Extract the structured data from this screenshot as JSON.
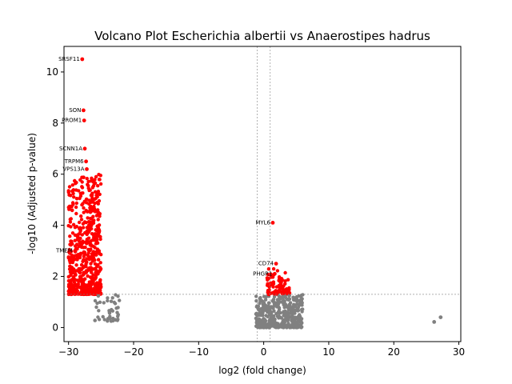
{
  "chart_data": {
    "type": "scatter",
    "title": "Volcano Plot Escherichia albertii vs Anaerostipes hadrus",
    "xlabel": "log2 (fold change)",
    "ylabel": "-log10 (Adjusted p-value)",
    "xlim": [
      -30.7,
      30.3
    ],
    "ylim": [
      -0.55,
      11.0
    ],
    "xticks": [
      -30,
      -20,
      -10,
      0,
      10,
      20,
      30
    ],
    "yticks": [
      0,
      2,
      4,
      6,
      8,
      10
    ],
    "grid": false,
    "thresholds": {
      "x": [
        -1,
        1
      ],
      "y": 1.3
    },
    "colors": {
      "significant": "#ff0000",
      "nonsignificant": "#808080",
      "threshold": "#808080"
    },
    "labeled_points": [
      {
        "label": "SRSF11",
        "x": -27.9,
        "y": 10.5
      },
      {
        "label": "SON",
        "x": -27.7,
        "y": 8.5
      },
      {
        "label": "PROM1",
        "x": -27.6,
        "y": 8.1
      },
      {
        "label": "SCNN1A",
        "x": -27.5,
        "y": 7.0
      },
      {
        "label": "TRPM6",
        "x": -27.3,
        "y": 6.5
      },
      {
        "label": "VPS13A",
        "x": -27.2,
        "y": 6.2
      },
      {
        "label": "MYL6",
        "x": 1.4,
        "y": 4.1
      },
      {
        "label": "CD74",
        "x": 1.9,
        "y": 2.5
      },
      {
        "label": "PHGR1",
        "x": 1.7,
        "y": 2.1
      },
      {
        "label": "TMEM",
        "x": -29.0,
        "y": 3.0
      }
    ],
    "clusters": [
      {
        "name": "left-significant",
        "x_range": [
          -30.0,
          -25.0
        ],
        "y_range": [
          1.3,
          6.0
        ],
        "count": 600,
        "color": "significant"
      },
      {
        "name": "left-nonsig",
        "x_range": [
          -26.0,
          -22.0
        ],
        "y_range": [
          0.25,
          1.3
        ],
        "count": 45,
        "color": "nonsignificant"
      },
      {
        "name": "center-nonsig",
        "x_range": [
          -1.2,
          6.0
        ],
        "y_range": [
          0.0,
          1.3
        ],
        "count": 420,
        "color": "nonsignificant"
      },
      {
        "name": "center-significant",
        "x_range": [
          0.5,
          4.0
        ],
        "y_range": [
          1.3,
          2.3
        ],
        "count": 90,
        "color": "significant"
      }
    ],
    "outliers": [
      {
        "x": 26.2,
        "y": 0.22
      },
      {
        "x": 27.2,
        "y": 0.4
      }
    ]
  }
}
